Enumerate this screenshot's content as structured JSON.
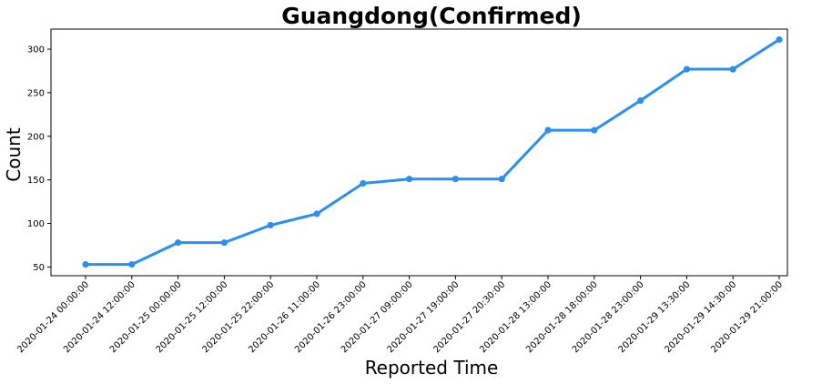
{
  "chart_data": {
    "type": "line",
    "title": "Guangdong(Confirmed)",
    "xlabel": "Reported Time",
    "ylabel": "Count",
    "categories": [
      "2020-01-24 00:00:00",
      "2020-01-24 12:00:00",
      "2020-01-25 00:00:00",
      "2020-01-25 12:00:00",
      "2020-01-25 22:00:00",
      "2020-01-26 11:00:00",
      "2020-01-26 23:00:00",
      "2020-01-27 09:00:00",
      "2020-01-27 19:00:00",
      "2020-01-27 20:30:00",
      "2020-01-28 13:00:00",
      "2020-01-28 18:00:00",
      "2020-01-28 23:00:00",
      "2020-01-29 13:30:00",
      "2020-01-29 14:30:00",
      "2020-01-29 21:00:00"
    ],
    "values": [
      53,
      53,
      78,
      78,
      98,
      111,
      146,
      151,
      151,
      151,
      207,
      207,
      241,
      277,
      277,
      311
    ],
    "yticks": [
      50,
      100,
      150,
      200,
      250,
      300
    ],
    "ylim": [
      40,
      323
    ],
    "grid": false,
    "color": "#2b8ff0"
  }
}
